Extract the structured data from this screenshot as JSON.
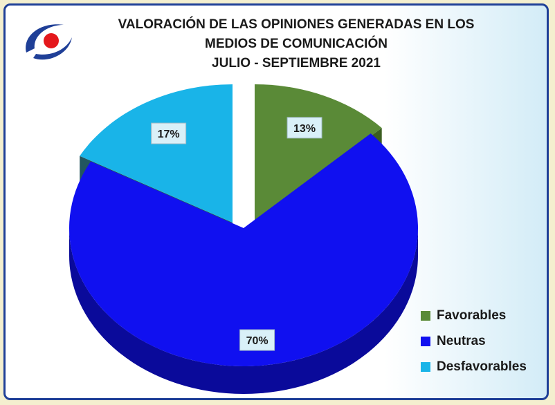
{
  "title": {
    "line1": "VALORACIÓN DE LAS OPINIONES GENERADAS EN LOS",
    "line2": "MEDIOS DE COMUNICACIÓN",
    "line3": "JULIO - SEPTIEMBRE 2021"
  },
  "logo_icon": "red-dot-swoosh-logo",
  "chart_data": {
    "type": "pie",
    "title": "VALORACIÓN DE LAS OPINIONES GENERADAS EN LOS MEDIOS DE COMUNICACIÓN JULIO - SEPTIEMBRE 2021",
    "style": "3d-exploded",
    "legend_position": "bottom-right",
    "slices": [
      {
        "label": "Favorables",
        "value": 13,
        "display": "13%",
        "color": "#5a8a37",
        "side_color": "#3b5e22"
      },
      {
        "label": "Neutras",
        "value": 70,
        "display": "70%",
        "color": "#1010f0",
        "side_color": "#0a0a9a"
      },
      {
        "label": "Desfavorables",
        "value": 17,
        "display": "17%",
        "color": "#19b4e8",
        "side_color": "#22565f"
      }
    ]
  }
}
